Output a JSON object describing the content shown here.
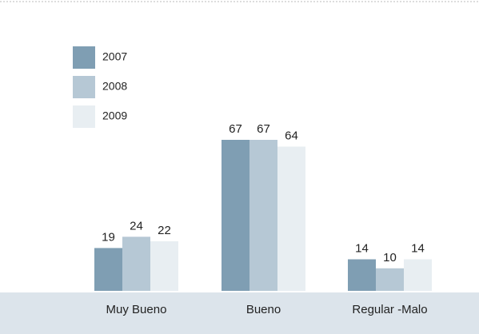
{
  "chart_data": {
    "type": "bar",
    "categories": [
      "Muy Bueno",
      "Bueno",
      "Regular -Malo"
    ],
    "series": [
      {
        "name": "2007",
        "color": "#7f9eb3",
        "values": [
          19,
          67,
          14
        ]
      },
      {
        "name": "2008",
        "color": "#b6c8d5",
        "values": [
          24,
          67,
          10
        ]
      },
      {
        "name": "2009",
        "color": "#e8eef2",
        "values": [
          22,
          64,
          14
        ]
      }
    ]
  }
}
